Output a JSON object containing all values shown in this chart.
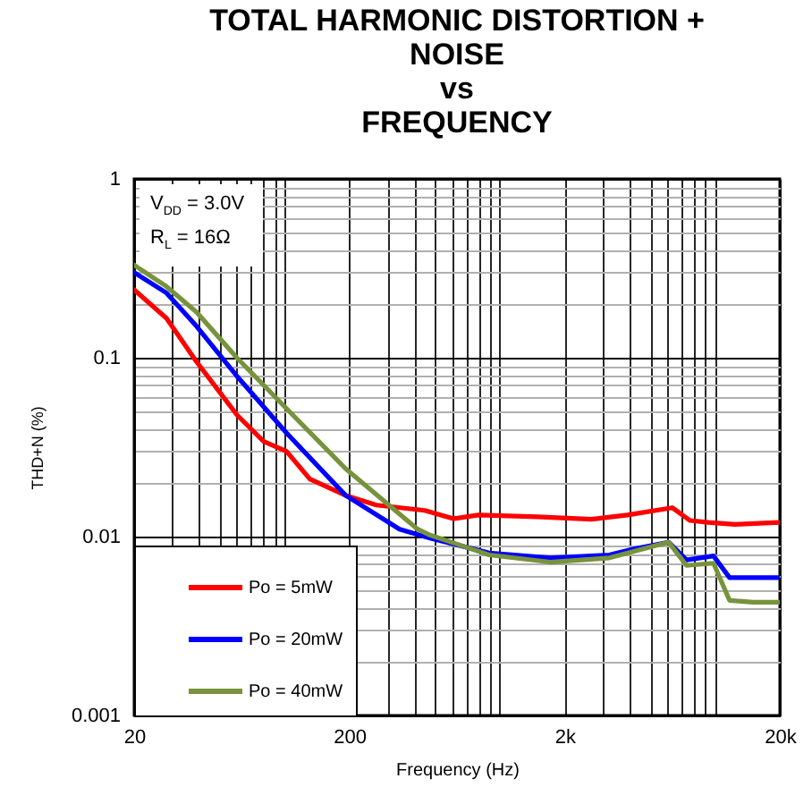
{
  "chart_data": {
    "type": "line",
    "title": "TOTAL HARMONIC DISTORTION +\nNOISE\nvs\nFREQUENCY",
    "xlabel": "Frequency (Hz)",
    "ylabel": "THD+N (%)",
    "annotations": [
      "V$_{DD}$ = 3.0V",
      "R$_{L}$ = 16Ω"
    ],
    "log": "xy",
    "grid": true,
    "legend": "bottom left",
    "line_style": "solid",
    "xlim": [
      20,
      20000
    ],
    "ylim": [
      0.001,
      1
    ],
    "xticks": [
      {
        "value": 20,
        "label": "20"
      },
      {
        "value": 30,
        "label": null
      },
      {
        "value": 40,
        "label": null
      },
      {
        "value": 50,
        "label": null
      },
      {
        "value": 60,
        "label": null
      },
      {
        "value": 70,
        "label": null
      },
      {
        "value": 80,
        "label": null
      },
      {
        "value": 90,
        "label": null
      },
      {
        "value": 100,
        "label": null
      },
      200,
      {
        "value": 300,
        "label": null
      },
      {
        "value": 400,
        "label": null
      },
      {
        "value": 500,
        "label": null
      },
      {
        "value": 600,
        "label": null
      },
      {
        "value": 700,
        "label": null
      },
      {
        "value": 800,
        "label": null
      },
      {
        "value": 900,
        "label": null
      },
      {
        "value": 1000,
        "label": null
      },
      {
        "value": 2000,
        "label": "2k"
      },
      {
        "value": 3000,
        "label": null
      },
      {
        "value": 4000,
        "label": null
      },
      {
        "value": 5000,
        "label": null
      },
      {
        "value": 6000,
        "label": null
      },
      {
        "value": 7000,
        "label": null
      },
      {
        "value": 8000,
        "label": null
      },
      {
        "value": 9000,
        "label": null
      },
      {
        "value": 10000,
        "label": null
      },
      {
        "value": 20000,
        "label": "20k"
      }
    ],
    "yticks": [
      0.001,
      {
        "value": 0.002,
        "label": null
      },
      {
        "value": 0.003,
        "label": null
      },
      {
        "value": 0.004,
        "label": null
      },
      {
        "value": 0.005,
        "label": null
      },
      {
        "value": 0.006,
        "label": null
      },
      {
        "value": 0.007,
        "label": null
      },
      {
        "value": 0.008,
        "label": null
      },
      {
        "value": 0.009,
        "label": null
      },
      0.01,
      {
        "value": 0.02,
        "label": null
      },
      {
        "value": 0.03,
        "label": null
      },
      {
        "value": 0.04,
        "label": null
      },
      {
        "value": 0.05,
        "label": null
      },
      {
        "value": 0.06,
        "label": null
      },
      {
        "value": 0.07,
        "label": null
      },
      {
        "value": 0.08,
        "label": null
      },
      {
        "value": 0.09,
        "label": null
      },
      0.1,
      {
        "value": 0.2,
        "label": null
      },
      {
        "value": 0.3,
        "label": null
      },
      {
        "value": 0.4,
        "label": null
      },
      {
        "value": 0.5,
        "label": null
      },
      {
        "value": 0.6,
        "label": null
      },
      {
        "value": 0.7,
        "label": null
      },
      {
        "value": 0.8,
        "label": null
      },
      {
        "value": 0.9,
        "label": null
      },
      1
    ],
    "series": [
      {
        "name": "Po = 5mW",
        "color": "#ff0000",
        "x": [
          20,
          28.3,
          39,
          60,
          80,
          102,
          131,
          192,
          267,
          448,
          609,
          796,
          1500,
          2667,
          3915,
          6325,
          7660,
          9290,
          12380,
          20000
        ],
        "values": [
          0.24,
          0.166,
          0.095,
          0.048,
          0.034,
          0.03,
          0.021,
          0.017,
          0.015,
          0.014,
          0.0126,
          0.0132,
          0.0129,
          0.0125,
          0.0132,
          0.0145,
          0.0123,
          0.012,
          0.0117,
          0.012
        ]
      },
      {
        "name": "Po = 20mW",
        "color": "#0000ff",
        "x": [
          20,
          28.3,
          39,
          60,
          102,
          192,
          342,
          474,
          893,
          1715,
          3230,
          4150,
          6090,
          7370,
          9840,
          11680,
          20000
        ],
        "values": [
          0.3,
          0.23,
          0.15,
          0.079,
          0.038,
          0.017,
          0.011,
          0.0098,
          0.0081,
          0.0076,
          0.0079,
          0.0085,
          0.0093,
          0.0074,
          0.0078,
          0.0059,
          0.0059
        ]
      },
      {
        "name": "Po = 40mW",
        "color": "#77933c",
        "x": [
          20,
          28.3,
          39,
          60,
          102,
          192,
          415,
          474,
          893,
          1715,
          3230,
          6090,
          7370,
          9840,
          11680,
          15000,
          20000
        ],
        "values": [
          0.33,
          0.25,
          0.18,
          0.1,
          0.052,
          0.024,
          0.011,
          0.0102,
          0.0079,
          0.0072,
          0.0076,
          0.0093,
          0.0069,
          0.0071,
          0.0044,
          0.0043,
          0.0043
        ]
      }
    ]
  }
}
